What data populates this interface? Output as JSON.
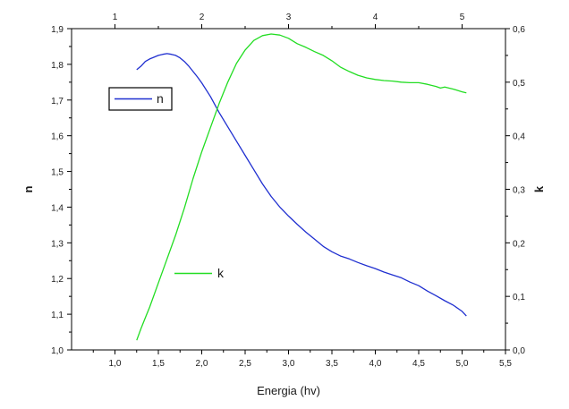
{
  "chart_data": {
    "type": "line",
    "title": "",
    "xlabel": "Energia (hv)",
    "ylabel": "n",
    "y2label": "k",
    "xlim": [
      0.5,
      5.5
    ],
    "ylim": [
      1.0,
      1.9
    ],
    "y2lim": [
      0.0,
      0.6
    ],
    "top_xlim": [
      0.5,
      5.5
    ],
    "xticks": [
      "1,0",
      "1,5",
      "2,0",
      "2,5",
      "3,0",
      "3,5",
      "4,0",
      "4,5",
      "5,0",
      "5,5"
    ],
    "xtick_values": [
      1.0,
      1.5,
      2.0,
      2.5,
      3.0,
      3.5,
      4.0,
      4.5,
      5.0,
      5.5
    ],
    "yticks": [
      "1,0",
      "1,1",
      "1,2",
      "1,3",
      "1,4",
      "1,5",
      "1,6",
      "1,7",
      "1,8",
      "1,9"
    ],
    "ytick_values": [
      1.0,
      1.1,
      1.2,
      1.3,
      1.4,
      1.5,
      1.6,
      1.7,
      1.8,
      1.9
    ],
    "y2ticks": [
      "0,0",
      "0,1",
      "0,2",
      "0,3",
      "0,4",
      "0,5",
      "0,6"
    ],
    "y2tick_values": [
      0.0,
      0.1,
      0.2,
      0.3,
      0.4,
      0.5,
      0.6
    ],
    "top_xticks": [
      "1",
      "2",
      "3",
      "4",
      "5"
    ],
    "top_xtick_values": [
      1,
      2,
      3,
      4,
      5
    ],
    "grid": false,
    "series": [
      {
        "name": "n",
        "axis": "left",
        "color": "#1f2fd0",
        "x": [
          1.25,
          1.3,
          1.35,
          1.4,
          1.45,
          1.5,
          1.55,
          1.6,
          1.65,
          1.7,
          1.75,
          1.8,
          1.85,
          1.9,
          1.95,
          2.0,
          2.1,
          2.2,
          2.3,
          2.4,
          2.5,
          2.6,
          2.7,
          2.8,
          2.9,
          3.0,
          3.1,
          3.2,
          3.3,
          3.4,
          3.5,
          3.6,
          3.7,
          3.8,
          3.9,
          4.0,
          4.1,
          4.2,
          4.3,
          4.4,
          4.5,
          4.6,
          4.7,
          4.8,
          4.9,
          5.0,
          5.05
        ],
        "y": [
          1.785,
          1.795,
          1.808,
          1.815,
          1.82,
          1.825,
          1.828,
          1.83,
          1.828,
          1.825,
          1.818,
          1.808,
          1.795,
          1.78,
          1.765,
          1.748,
          1.71,
          1.665,
          1.625,
          1.585,
          1.545,
          1.505,
          1.465,
          1.43,
          1.4,
          1.375,
          1.352,
          1.33,
          1.31,
          1.29,
          1.275,
          1.263,
          1.255,
          1.245,
          1.236,
          1.228,
          1.218,
          1.21,
          1.202,
          1.19,
          1.18,
          1.165,
          1.152,
          1.138,
          1.125,
          1.108,
          1.095
        ]
      },
      {
        "name": "k",
        "axis": "right",
        "color": "#22dd22",
        "x": [
          1.25,
          1.3,
          1.35,
          1.4,
          1.5,
          1.6,
          1.7,
          1.8,
          1.9,
          2.0,
          2.1,
          2.2,
          2.3,
          2.4,
          2.5,
          2.6,
          2.7,
          2.8,
          2.9,
          3.0,
          3.1,
          3.2,
          3.3,
          3.4,
          3.5,
          3.6,
          3.7,
          3.8,
          3.9,
          4.0,
          4.1,
          4.2,
          4.3,
          4.4,
          4.5,
          4.6,
          4.7,
          4.75,
          4.8,
          4.9,
          5.0,
          5.05
        ],
        "y": [
          0.018,
          0.04,
          0.06,
          0.08,
          0.125,
          0.17,
          0.215,
          0.265,
          0.32,
          0.37,
          0.415,
          0.46,
          0.5,
          0.535,
          0.56,
          0.578,
          0.587,
          0.59,
          0.588,
          0.582,
          0.572,
          0.565,
          0.557,
          0.55,
          0.54,
          0.528,
          0.52,
          0.513,
          0.508,
          0.505,
          0.503,
          0.502,
          0.5,
          0.499,
          0.499,
          0.496,
          0.492,
          0.489,
          0.491,
          0.487,
          0.482,
          0.48
        ]
      }
    ],
    "legends": [
      {
        "label": "n",
        "color": "#1f2fd0",
        "boxed": true,
        "placement": "upper-left"
      },
      {
        "label": "k",
        "color": "#22dd22",
        "boxed": false,
        "placement": "lower-left"
      }
    ]
  }
}
